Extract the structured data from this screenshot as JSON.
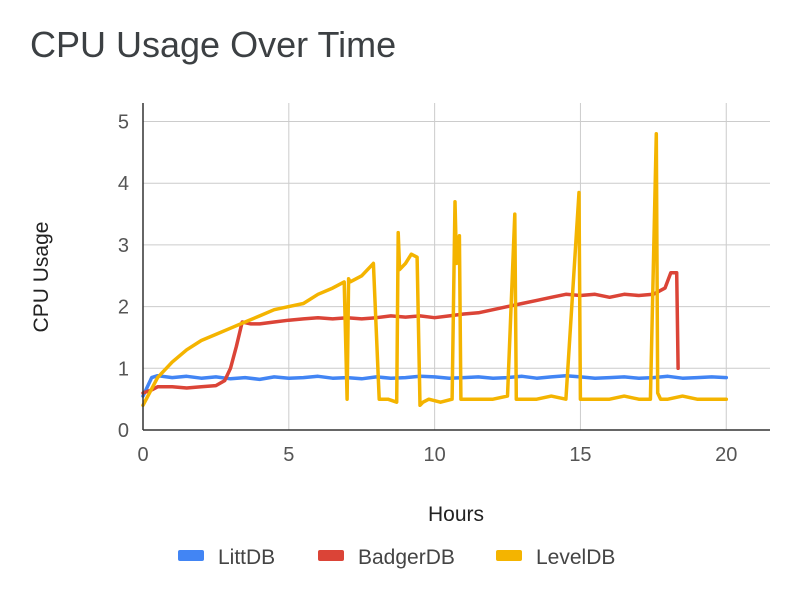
{
  "chart_data": {
    "type": "line",
    "title": "CPU Usage Over Time",
    "xlabel": "Hours",
    "ylabel": "CPU Usage",
    "xlim": [
      0,
      21.5
    ],
    "ylim": [
      0,
      5.3
    ],
    "x_ticks": [
      0,
      5,
      10,
      15,
      20
    ],
    "y_ticks": [
      0,
      1,
      2,
      3,
      4,
      5
    ],
    "grid": true,
    "legend_position": "bottom",
    "series": [
      {
        "name": "LittDB",
        "color": "#4285f4",
        "x": [
          0,
          0.3,
          0.5,
          1,
          1.5,
          2,
          2.5,
          3,
          3.5,
          4,
          4.5,
          5,
          5.5,
          6,
          6.5,
          7,
          7.5,
          8,
          8.5,
          9,
          9.5,
          10,
          10.5,
          11,
          11.5,
          12,
          12.5,
          13,
          13.5,
          14,
          14.5,
          15,
          15.5,
          16,
          16.5,
          17,
          17.5,
          18,
          18.5,
          19,
          19.5,
          20
        ],
        "y": [
          0.55,
          0.85,
          0.88,
          0.85,
          0.87,
          0.84,
          0.86,
          0.83,
          0.85,
          0.82,
          0.86,
          0.84,
          0.85,
          0.87,
          0.84,
          0.85,
          0.83,
          0.86,
          0.84,
          0.85,
          0.87,
          0.86,
          0.84,
          0.85,
          0.86,
          0.84,
          0.85,
          0.87,
          0.84,
          0.86,
          0.88,
          0.86,
          0.84,
          0.85,
          0.86,
          0.84,
          0.85,
          0.87,
          0.84,
          0.85,
          0.86,
          0.85
        ]
      },
      {
        "name": "BadgerDB",
        "color": "#db4437",
        "x": [
          0,
          0.3,
          0.5,
          1,
          1.5,
          2,
          2.5,
          2.8,
          3,
          3.2,
          3.4,
          3.7,
          4,
          4.5,
          5,
          5.5,
          6,
          6.5,
          7,
          7.5,
          8,
          8.5,
          9,
          9.5,
          10,
          10.5,
          11,
          11.5,
          12,
          12.5,
          13,
          13.5,
          14,
          14.5,
          15,
          15.5,
          16,
          16.5,
          17,
          17.5,
          17.9,
          18.1,
          18.3,
          18.35
        ],
        "y": [
          0.6,
          0.65,
          0.7,
          0.7,
          0.68,
          0.7,
          0.72,
          0.8,
          1.0,
          1.35,
          1.75,
          1.72,
          1.72,
          1.75,
          1.78,
          1.8,
          1.82,
          1.8,
          1.82,
          1.8,
          1.82,
          1.85,
          1.83,
          1.85,
          1.82,
          1.85,
          1.88,
          1.9,
          1.95,
          2.0,
          2.05,
          2.1,
          2.15,
          2.2,
          2.18,
          2.2,
          2.15,
          2.2,
          2.18,
          2.2,
          2.3,
          2.55,
          2.55,
          1.0
        ]
      },
      {
        "name": "LevelDB",
        "color": "#f4b400",
        "x": [
          0,
          0.5,
          1,
          1.5,
          2,
          2.5,
          3,
          3.5,
          4,
          4.5,
          5,
          5.5,
          6,
          6.5,
          6.9,
          7.0,
          7.05,
          7.1,
          7.5,
          7.9,
          8.1,
          8.2,
          8.4,
          8.7,
          8.75,
          8.8,
          9.0,
          9.2,
          9.4,
          9.5,
          9.6,
          9.8,
          10.2,
          10.6,
          10.7,
          10.75,
          10.85,
          10.9,
          11.0,
          11.5,
          12,
          12.5,
          12.75,
          12.8,
          12.85,
          13,
          13.5,
          14,
          14.5,
          14.95,
          15.0,
          15.05,
          15.5,
          16,
          16.5,
          17,
          17.4,
          17.6,
          17.65,
          17.75,
          18,
          18.5,
          19,
          19.5,
          20
        ],
        "y": [
          0.4,
          0.85,
          1.1,
          1.3,
          1.45,
          1.55,
          1.65,
          1.75,
          1.85,
          1.95,
          2.0,
          2.05,
          2.2,
          2.3,
          2.4,
          0.5,
          2.45,
          2.4,
          2.5,
          2.7,
          0.5,
          0.5,
          0.5,
          0.45,
          3.2,
          2.6,
          2.7,
          2.85,
          2.8,
          0.4,
          0.45,
          0.5,
          0.45,
          0.5,
          3.7,
          2.7,
          3.15,
          0.5,
          0.5,
          0.5,
          0.5,
          0.55,
          3.5,
          0.5,
          0.5,
          0.5,
          0.5,
          0.55,
          0.5,
          3.85,
          0.5,
          0.5,
          0.5,
          0.5,
          0.55,
          0.5,
          0.5,
          4.8,
          0.6,
          0.5,
          0.5,
          0.55,
          0.5,
          0.5,
          0.5
        ]
      }
    ]
  }
}
